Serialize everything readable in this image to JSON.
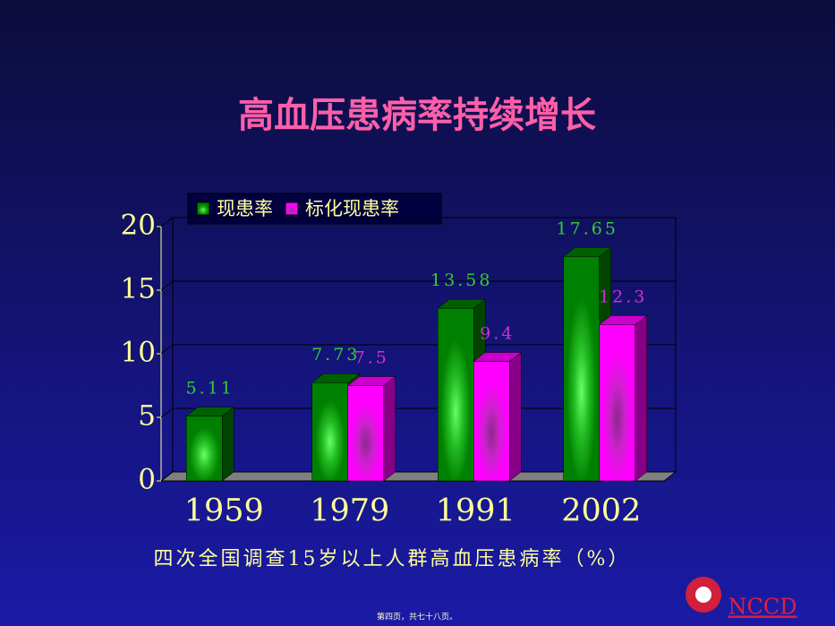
{
  "chart_data": {
    "type": "bar3d",
    "title": "高血压患病率持续增长",
    "subtitle": "四次全国调查15岁以上人群高血压患病率（%）",
    "categories": [
      "1959",
      "1979",
      "1991",
      "2002"
    ],
    "series": [
      {
        "name": "现患率",
        "color": "#008000",
        "label_color": "#33cc33",
        "values": [
          5.11,
          7.73,
          13.58,
          17.65
        ]
      },
      {
        "name": "标化现患率",
        "color": "#ff00ff",
        "label_color": "#cc33cc",
        "values": [
          null,
          7.5,
          9.4,
          12.3
        ]
      }
    ],
    "ylim": [
      0,
      20
    ],
    "yticks": [
      0,
      5,
      10,
      15,
      20
    ],
    "grid": true,
    "legend": "top-left"
  },
  "page_note": "第四页，共七十八页。",
  "logo_text": "NCCD"
}
